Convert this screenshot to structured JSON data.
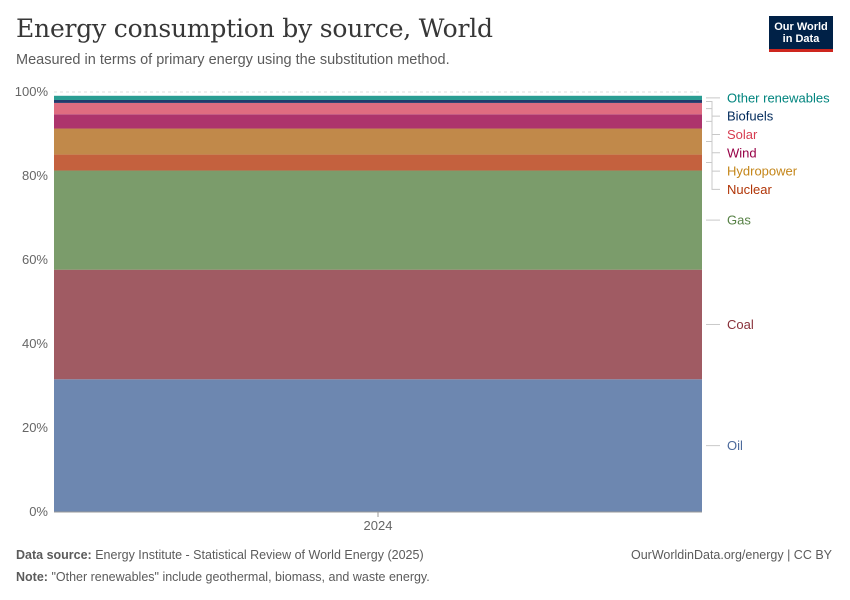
{
  "header": {
    "title": "Energy consumption by source, World",
    "subtitle": "Measured in terms of primary energy using the substitution method."
  },
  "logo": {
    "line1": "Our World",
    "line2": "in Data",
    "bg_color": "#002147",
    "accent_color": "#ce261e"
  },
  "footer": {
    "source_label": "Data source:",
    "source_text": "Energy Institute - Statistical Review of World Energy (2025)",
    "url_text": "OurWorldinData.org/energy | CC BY",
    "note_label": "Note:",
    "note_text": "\"Other renewables\" include geothermal, biomass, and waste energy."
  },
  "chart_data": {
    "type": "bar",
    "stacked": true,
    "categories": [
      "2024"
    ],
    "ylim": [
      0,
      100
    ],
    "y_ticks": [
      0,
      20,
      40,
      60,
      80,
      100
    ],
    "y_tick_labels": [
      "0%",
      "20%",
      "40%",
      "60%",
      "80%",
      "100%"
    ],
    "grid": true,
    "legend": "right",
    "series": [
      {
        "name": "Oil",
        "values": [
          31.6
        ],
        "color": "#6d87b0",
        "label_color": "#4c6a9c"
      },
      {
        "name": "Coal",
        "values": [
          26.1
        ],
        "color": "#a05b63",
        "label_color": "#883039"
      },
      {
        "name": "Gas",
        "values": [
          23.6
        ],
        "color": "#7b9c6b",
        "label_color": "#578145"
      },
      {
        "name": "Nuclear",
        "values": [
          3.8
        ],
        "color": "#c4613e",
        "label_color": "#b13507"
      },
      {
        "name": "Hydropower",
        "values": [
          6.2
        ],
        "color": "#c1894a",
        "label_color": "#c4861a"
      },
      {
        "name": "Wind",
        "values": [
          3.4
        ],
        "color": "#ad346c",
        "label_color": "#970046"
      },
      {
        "name": "Solar",
        "values": [
          2.7
        ],
        "color": "#df6c80",
        "label_color": "#d73c50"
      },
      {
        "name": "Biofuels",
        "values": [
          0.7
        ],
        "color": "#223a6b",
        "label_color": "#00295b"
      },
      {
        "name": "Other renewables",
        "values": [
          1.0
        ],
        "color": "#2a9d93",
        "label_color": "#00847e"
      }
    ]
  }
}
